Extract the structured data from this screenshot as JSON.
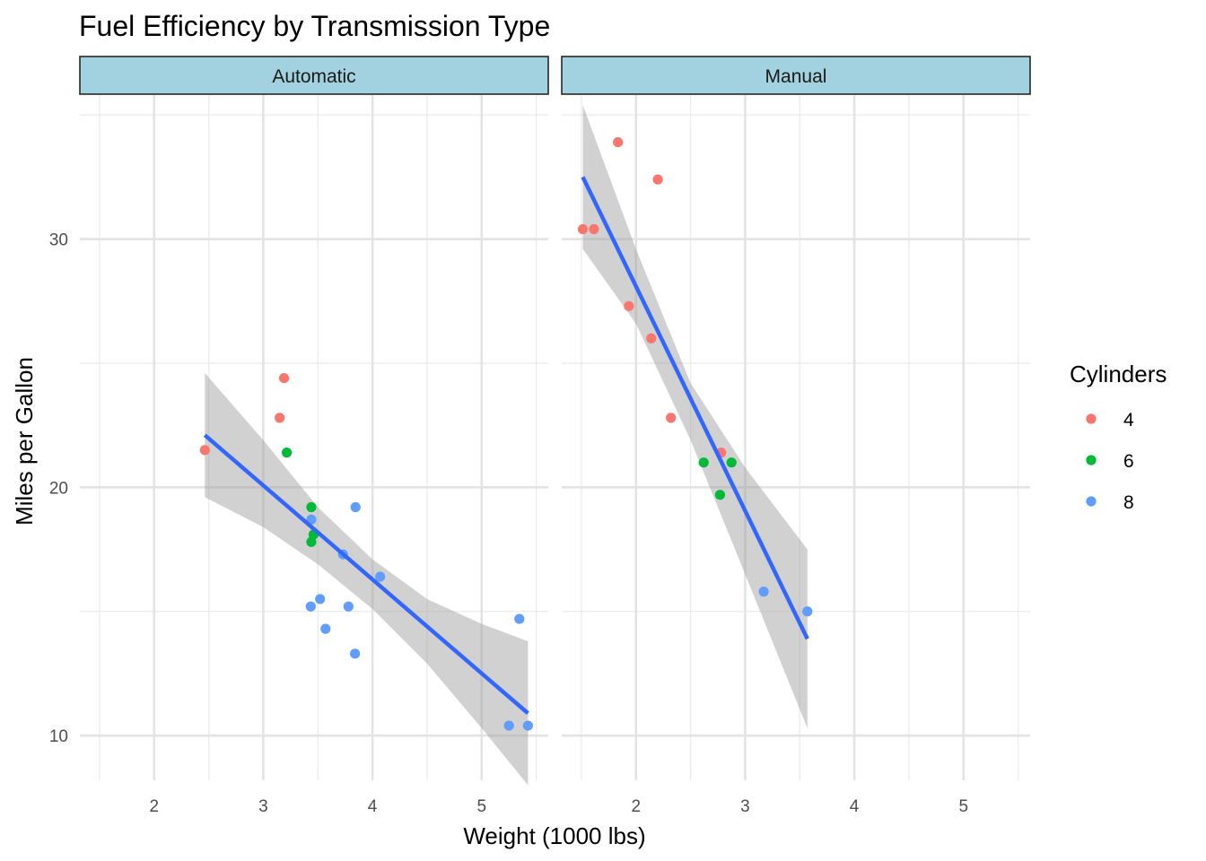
{
  "chart_data": {
    "type": "scatter",
    "title": "Fuel Efficiency by Transmission Type",
    "xlabel": "Weight (1000 lbs)",
    "ylabel": "Miles per Gallon",
    "xlim": [
      1.32,
      5.61
    ],
    "ylim": [
      8.2,
      35.8
    ],
    "xticks": [
      2,
      3,
      4,
      5
    ],
    "yticks": [
      10,
      20,
      30
    ],
    "grid": true,
    "legend": {
      "title": "Cylinders",
      "placement": "right",
      "entries": [
        {
          "label": "4",
          "color": "#F8766D"
        },
        {
          "label": "6",
          "color": "#00BA38"
        },
        {
          "label": "8",
          "color": "#619CFF"
        }
      ]
    },
    "fit": {
      "method": "linear",
      "line_color": "#3366FF",
      "band_color": "#999999"
    },
    "panels": [
      {
        "label": "Automatic",
        "points": [
          {
            "x": 2.465,
            "y": 21.5,
            "cyl": "4"
          },
          {
            "x": 3.15,
            "y": 22.8,
            "cyl": "4"
          },
          {
            "x": 3.19,
            "y": 24.4,
            "cyl": "4"
          },
          {
            "x": 3.215,
            "y": 21.4,
            "cyl": "6"
          },
          {
            "x": 3.44,
            "y": 19.2,
            "cyl": "6"
          },
          {
            "x": 3.44,
            "y": 17.8,
            "cyl": "6"
          },
          {
            "x": 3.46,
            "y": 18.1,
            "cyl": "6"
          },
          {
            "x": 3.44,
            "y": 18.7,
            "cyl": "8"
          },
          {
            "x": 3.57,
            "y": 14.3,
            "cyl": "8"
          },
          {
            "x": 4.07,
            "y": 16.4,
            "cyl": "8"
          },
          {
            "x": 3.73,
            "y": 17.3,
            "cyl": "8"
          },
          {
            "x": 3.78,
            "y": 15.2,
            "cyl": "8"
          },
          {
            "x": 5.25,
            "y": 10.4,
            "cyl": "8"
          },
          {
            "x": 5.424,
            "y": 10.4,
            "cyl": "8"
          },
          {
            "x": 5.345,
            "y": 14.7,
            "cyl": "8"
          },
          {
            "x": 3.52,
            "y": 15.5,
            "cyl": "8"
          },
          {
            "x": 3.435,
            "y": 15.2,
            "cyl": "8"
          },
          {
            "x": 3.84,
            "y": 13.3,
            "cyl": "8"
          },
          {
            "x": 3.845,
            "y": 19.2,
            "cyl": "8"
          }
        ],
        "fit_line": {
          "x": [
            2.465,
            5.424
          ],
          "y": [
            22.1,
            10.9
          ]
        },
        "band": {
          "x": [
            2.465,
            3.0,
            3.5,
            4.0,
            4.5,
            5.0,
            5.424
          ],
          "lower": [
            19.6,
            18.4,
            16.9,
            15.1,
            12.9,
            10.3,
            8.0
          ],
          "upper": [
            24.6,
            21.9,
            19.2,
            17.1,
            15.5,
            14.5,
            13.8
          ]
        }
      },
      {
        "label": "Manual",
        "points": [
          {
            "x": 2.2,
            "y": 32.4,
            "cyl": "4"
          },
          {
            "x": 1.615,
            "y": 30.4,
            "cyl": "4"
          },
          {
            "x": 1.835,
            "y": 33.9,
            "cyl": "4"
          },
          {
            "x": 1.935,
            "y": 27.3,
            "cyl": "4"
          },
          {
            "x": 2.14,
            "y": 26.0,
            "cyl": "4"
          },
          {
            "x": 1.513,
            "y": 30.4,
            "cyl": "4"
          },
          {
            "x": 2.78,
            "y": 21.4,
            "cyl": "4"
          },
          {
            "x": 2.32,
            "y": 22.8,
            "cyl": "4"
          },
          {
            "x": 2.62,
            "y": 21.0,
            "cyl": "6"
          },
          {
            "x": 2.875,
            "y": 21.0,
            "cyl": "6"
          },
          {
            "x": 2.77,
            "y": 19.7,
            "cyl": "6"
          },
          {
            "x": 3.17,
            "y": 15.8,
            "cyl": "8"
          },
          {
            "x": 3.57,
            "y": 15.0,
            "cyl": "8"
          }
        ],
        "fit_line": {
          "x": [
            1.513,
            3.57
          ],
          "y": [
            32.5,
            13.9
          ]
        },
        "band": {
          "x": [
            1.513,
            2.0,
            2.5,
            3.0,
            3.57
          ],
          "lower": [
            29.6,
            26.6,
            21.9,
            16.5,
            10.3
          ],
          "upper": [
            35.4,
            29.6,
            24.2,
            20.8,
            17.5
          ]
        }
      }
    ]
  }
}
